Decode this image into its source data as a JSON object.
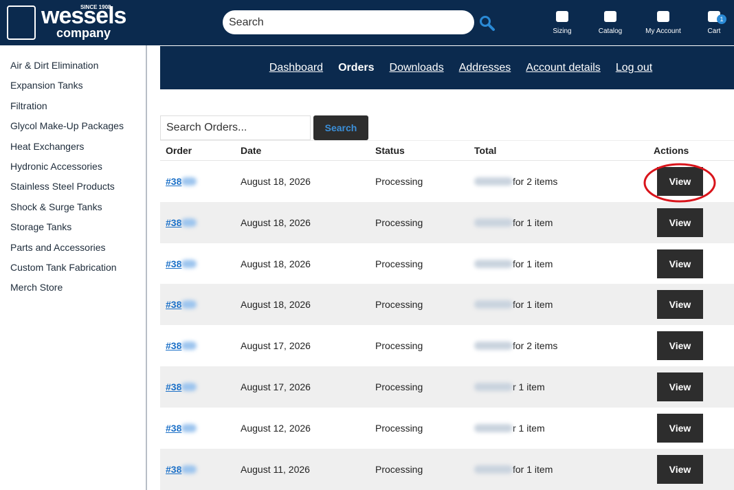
{
  "header": {
    "logo": {
      "since": "SINCE 1908",
      "name": "wessels",
      "sub": "company"
    },
    "search_placeholder": "Search",
    "nav": [
      "Sizing",
      "Catalog",
      "My Account",
      "Cart"
    ],
    "cart_count": "1"
  },
  "sidebar": [
    "Air & Dirt Elimination",
    "Expansion Tanks",
    "Filtration",
    "Glycol Make-Up Packages",
    "Heat Exchangers",
    "Hydronic Accessories",
    "Stainless Steel Products",
    "Shock & Surge Tanks",
    "Storage Tanks",
    "Parts and Accessories",
    "Custom Tank Fabrication",
    "Merch Store"
  ],
  "tabs": [
    "Dashboard",
    "Orders",
    "Downloads",
    "Addresses",
    "Account details",
    "Log out"
  ],
  "order_search": {
    "placeholder": "Search Orders...",
    "button": "Search"
  },
  "table": {
    "headers": [
      "Order",
      "Date",
      "Status",
      "Total",
      "Actions"
    ],
    "rows": [
      [
        "#38",
        "August 18, 2026",
        "Processing",
        "for 2 items",
        "View"
      ],
      [
        "#38",
        "August 18, 2026",
        "Processing",
        "for 1 item",
        "View"
      ],
      [
        "#38",
        "August 18, 2026",
        "Processing",
        "for 1 item",
        "View"
      ],
      [
        "#38",
        "August 18, 2026",
        "Processing",
        "for 1 item",
        "View"
      ],
      [
        "#38",
        "August 17, 2026",
        "Processing",
        "for 2 items",
        "View"
      ],
      [
        "#38",
        "August 17, 2026",
        "Processing",
        "r 1 item",
        "View"
      ],
      [
        "#38",
        "August 12, 2026",
        "Processing",
        "r 1 item",
        "View"
      ],
      [
        "#38",
        "August 11, 2026",
        "Processing",
        "for 1 item",
        "View"
      ]
    ]
  }
}
